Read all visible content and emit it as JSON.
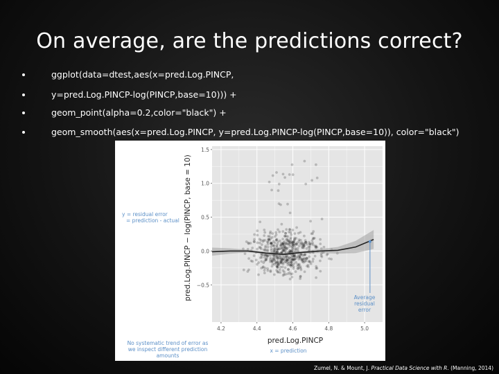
{
  "slide": {
    "title": "On average, are the predictions correct?",
    "bullets": [
      "ggplot(data=dtest,aes(x=pred.Log.PINCP,",
      "y=pred.Log.PINCP-log(PINCP,base=10))) +",
      "geom_point(alpha=0.2,color=\"black\") +",
      "geom_smooth(aes(x=pred.Log.PINCP, y=pred.Log.PINCP-log(PINCP,base=10)), color=\"black\")"
    ],
    "citation_authors": "Zumel, N. & Mount, J.",
    "citation_book": "Practical Data Science with R",
    "citation_rest": ". (Manning, 2014)"
  },
  "chart_data": {
    "type": "scatter",
    "xlabel": "pred.Log.PINCP",
    "ylabel": "pred.Log.PINCP − log(PINCP, base = 10)",
    "x_ticks": [
      "4.2",
      "4.4",
      "4.6",
      "4.8",
      "5.0"
    ],
    "y_ticks": [
      "1.5",
      "1.0",
      "0.5",
      "0.0",
      "−0.5"
    ],
    "x_tick_values": [
      4.2,
      4.4,
      4.6,
      4.8,
      5.0
    ],
    "y_tick_values": [
      1.5,
      1.0,
      0.5,
      0.0,
      -0.5
    ],
    "xlim": [
      4.15,
      5.1
    ],
    "ylim": [
      -1.05,
      1.55
    ],
    "grid": true,
    "point_alpha": 0.2,
    "smooth": {
      "x": [
        4.15,
        4.25,
        4.35,
        4.45,
        4.55,
        4.65,
        4.75,
        4.85,
        4.95,
        5.05
      ],
      "y": [
        -0.01,
        0.0,
        0.0,
        -0.03,
        -0.05,
        -0.02,
        0.0,
        0.01,
        0.06,
        0.17
      ],
      "band_halfwidth": [
        0.06,
        0.04,
        0.02,
        0.02,
        0.02,
        0.02,
        0.03,
        0.05,
        0.09,
        0.14
      ]
    },
    "average_residual_marker": {
      "x": 5.03,
      "y": 0.14
    },
    "annotations": {
      "y_def_1": "y = residual error",
      "y_def_2": "= prediction - actual",
      "avg_1": "Average",
      "avg_2": "residual",
      "avg_3": "error",
      "trend_1": "No systematic trend of error as",
      "trend_2": "we inspect different prediction",
      "trend_3": "amounts",
      "x_def": "x = prediction"
    },
    "colors": {
      "panel": "#e5e5e5",
      "grid": "#ffffff",
      "annotation": "#5b8fc7",
      "smooth": "#222222",
      "band": "#999999"
    }
  }
}
